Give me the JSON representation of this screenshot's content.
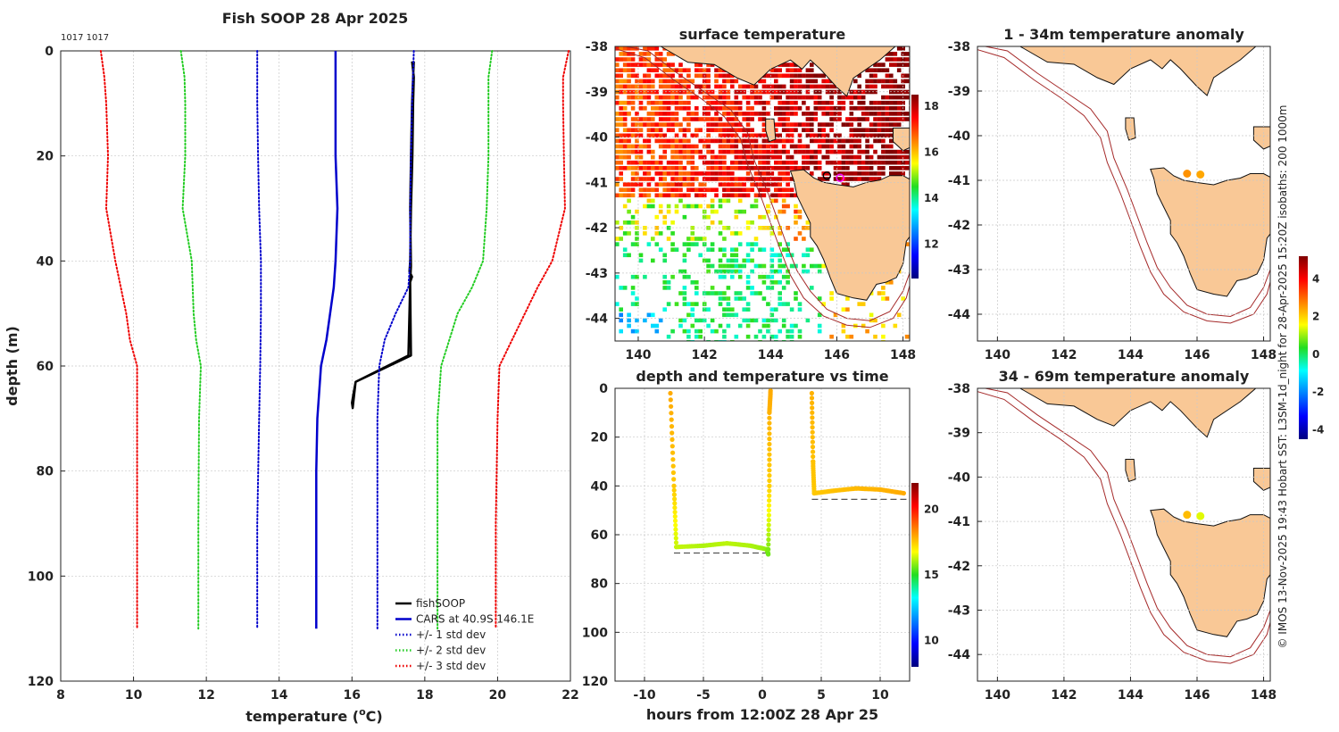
{
  "chart_data": [
    {
      "type": "line",
      "title": "Fish SOOP 28 Apr 2025",
      "annotation": "1017 1017",
      "xlabel": "temperature (",
      "xlabel_sup": "o",
      "xlabel_end": "C)",
      "ylabel": "depth (m)",
      "xlim": [
        8,
        22
      ],
      "ylim": [
        0,
        120
      ],
      "xticks": [
        8,
        10,
        12,
        14,
        16,
        18,
        20,
        22
      ],
      "yticks": [
        0,
        20,
        40,
        60,
        80,
        100,
        120
      ],
      "legend": [
        "fishSOOP",
        "CARS at 40.9S 146.1E",
        "+/- 1 std dev",
        "+/- 2 std dev",
        "+/- 3 std dev"
      ],
      "series": [
        {
          "name": "fishSOOP",
          "color": "#000000",
          "style": "solid",
          "width": 2.5,
          "x": [
            17.65,
            17.7,
            17.68,
            17.66,
            17.62,
            17.6,
            17.58,
            17.65,
            17.6,
            17.62,
            16.1,
            16.05,
            16.0,
            16.02,
            16.1,
            17.55,
            17.6,
            17.62,
            17.6,
            17.62,
            17.65,
            17.68,
            17.7
          ],
          "y": [
            2,
            5,
            10,
            20,
            30,
            40,
            42,
            43,
            44,
            58,
            63,
            65,
            67,
            68,
            63,
            58,
            44,
            41,
            30,
            20,
            10,
            5,
            2
          ]
        },
        {
          "name": "CARS at 40.9S 146.1E",
          "color": "#0000cc",
          "style": "solid",
          "width": 2.5,
          "x": [
            15.55,
            15.55,
            15.55,
            15.55,
            15.6,
            15.55,
            15.5,
            15.4,
            15.3,
            15.15,
            15.05,
            15.02,
            15.02,
            15.02
          ],
          "y": [
            0,
            5,
            10,
            20,
            30,
            40,
            45,
            50,
            55,
            60,
            70,
            80,
            100,
            110
          ]
        },
        {
          "name": "+1 std",
          "color": "#0000cc",
          "style": "dotted",
          "width": 2,
          "x": [
            17.7,
            17.65,
            17.62,
            17.6,
            17.6,
            17.55,
            17.2,
            16.9,
            16.75,
            16.7,
            16.7,
            16.7
          ],
          "y": [
            0,
            10,
            20,
            30,
            40,
            45,
            50,
            55,
            60,
            70,
            90,
            110
          ]
        },
        {
          "name": "-1 std",
          "color": "#0000cc",
          "style": "dotted",
          "width": 2,
          "x": [
            13.4,
            13.4,
            13.42,
            13.45,
            13.5,
            13.5,
            13.48,
            13.45,
            13.4,
            13.4
          ],
          "y": [
            0,
            10,
            20,
            30,
            40,
            50,
            60,
            70,
            90,
            110
          ]
        },
        {
          "name": "+2 std",
          "color": "#22cc22",
          "style": "dotted",
          "width": 2,
          "x": [
            19.85,
            19.75,
            19.75,
            19.75,
            19.7,
            19.6,
            19.3,
            18.9,
            18.45,
            18.35,
            18.35,
            18.35
          ],
          "y": [
            0,
            5,
            10,
            20,
            30,
            40,
            45,
            50,
            60,
            70,
            90,
            110
          ]
        },
        {
          "name": "-2 std",
          "color": "#22cc22",
          "style": "dotted",
          "width": 2,
          "x": [
            11.3,
            11.4,
            11.42,
            11.42,
            11.35,
            11.6,
            11.65,
            11.72,
            11.85,
            11.8,
            11.78,
            11.78
          ],
          "y": [
            0,
            5,
            10,
            20,
            30,
            40,
            50,
            55,
            60,
            70,
            90,
            110
          ]
        },
        {
          "name": "+3 std",
          "color": "#ee0000",
          "style": "dotted",
          "width": 2,
          "x": [
            21.95,
            21.8,
            21.8,
            21.82,
            21.85,
            21.5,
            21.1,
            20.4,
            20.05,
            20.0,
            19.95,
            19.95
          ],
          "y": [
            0,
            5,
            10,
            20,
            30,
            40,
            45,
            55,
            60,
            70,
            90,
            110
          ]
        },
        {
          "name": "-3 std",
          "color": "#ee0000",
          "style": "dotted",
          "width": 2,
          "x": [
            9.1,
            9.2,
            9.25,
            9.3,
            9.25,
            9.5,
            9.8,
            9.9,
            10.1,
            10.1,
            10.1,
            10.1
          ],
          "y": [
            0,
            5,
            10,
            20,
            30,
            40,
            50,
            55,
            60,
            70,
            90,
            110
          ]
        }
      ]
    },
    {
      "type": "heatmap",
      "title": "surface temperature",
      "xlim": [
        139.3,
        148.2
      ],
      "ylim": [
        -44.5,
        -38
      ],
      "xticks": [
        140,
        142,
        144,
        146,
        148
      ],
      "yticks": [
        -38,
        -39,
        -40,
        -41,
        -42,
        -43,
        -44
      ],
      "colorbar": {
        "min": 10.5,
        "max": 18.5,
        "ticks": [
          12,
          14,
          16,
          18
        ]
      },
      "markers": [
        {
          "lon": 145.7,
          "lat": -40.85,
          "color": "#000000"
        },
        {
          "lon": 146.1,
          "lat": -40.9,
          "color": "#ff00ff"
        }
      ]
    },
    {
      "type": "scatter",
      "title": "depth and temperature vs time",
      "xlabel": "hours from 12:00Z 28 Apr 25",
      "xlim": [
        -12.5,
        12.5
      ],
      "ylim": [
        0,
        120
      ],
      "xticks": [
        -10,
        -5,
        0,
        5,
        10
      ],
      "yticks": [
        0,
        20,
        40,
        60,
        80,
        100,
        120
      ],
      "colorbar": {
        "min": 8,
        "max": 22,
        "ticks": [
          10,
          15,
          20
        ]
      },
      "segments": [
        {
          "x": [
            -7.8,
            -7.5,
            -7.3,
            -5,
            -3,
            -1,
            0.4,
            0.5,
            0.6,
            0.6,
            0.7
          ],
          "y": [
            2,
            40,
            65,
            64.5,
            63.5,
            64.5,
            66,
            68,
            40,
            10,
            1
          ],
          "temp": [
            17.9,
            17.5,
            16.3,
            16.1,
            16.2,
            16.1,
            15.9,
            15.6,
            17.4,
            17.8,
            17.9
          ]
        },
        {
          "x": [
            4.2,
            4.3,
            4.4,
            6,
            8,
            10,
            12
          ],
          "y": [
            2,
            30,
            43,
            42,
            41,
            41.5,
            43
          ],
          "temp": [
            17.8,
            17.6,
            17.5,
            17.6,
            17.7,
            17.8,
            17.9
          ]
        }
      ],
      "bottom_lines": [
        {
          "x0": -7.5,
          "x1": 0.8,
          "depth": 67.5
        },
        {
          "x0": 4.2,
          "x1": 12.5,
          "depth": 45.5
        }
      ]
    },
    {
      "type": "scatter",
      "title": "1 - 34m temperature anomaly",
      "xlim": [
        139.4,
        148.2
      ],
      "ylim": [
        -44.6,
        -38
      ],
      "xticks": [
        140,
        142,
        144,
        146,
        148
      ],
      "yticks": [
        -38,
        -39,
        -40,
        -41,
        -42,
        -43,
        -44
      ],
      "markers": [
        {
          "lon": 145.7,
          "lat": -40.85,
          "anomaly": 2.6
        },
        {
          "lon": 146.1,
          "lat": -40.87,
          "anomaly": 2.4
        }
      ]
    },
    {
      "type": "scatter",
      "title": "34 - 69m temperature anomaly",
      "xlim": [
        139.4,
        148.2
      ],
      "ylim": [
        -44.6,
        -38
      ],
      "xticks": [
        140,
        142,
        144,
        146,
        148
      ],
      "yticks": [
        -38,
        -39,
        -40,
        -41,
        -42,
        -43,
        -44
      ],
      "markers": [
        {
          "lon": 145.7,
          "lat": -40.85,
          "anomaly": 2.2
        },
        {
          "lon": 146.1,
          "lat": -40.88,
          "anomaly": 1.4
        }
      ],
      "colorbar": {
        "min": -4.5,
        "max": 5.2,
        "ticks": [
          -4,
          -2,
          0,
          2,
          4
        ]
      }
    }
  ],
  "credit_text": "© IMOS 13-Nov-2025 19:43 Hobart SST: L3SM-1d_night for 28-Apr-2025 15:20Z isobaths: 200  1000m"
}
